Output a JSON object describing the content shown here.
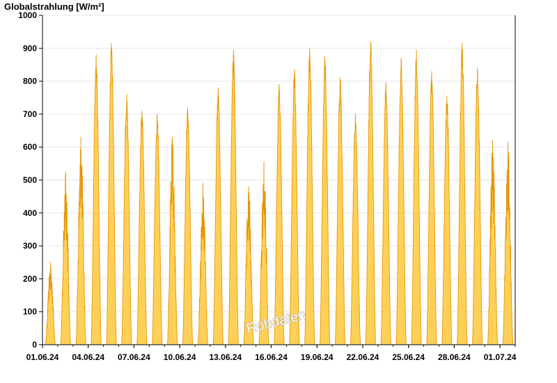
{
  "chart_data": {
    "type": "area",
    "title": "Globalstrahlung [W/m²]",
    "watermark": "Rohdaten",
    "ylim": [
      0,
      1000
    ],
    "yticks": [
      0,
      100,
      200,
      300,
      400,
      500,
      600,
      700,
      800,
      900,
      1000
    ],
    "xlim": [
      "2024-06-01T00:00",
      "2024-07-02T00:00"
    ],
    "xtick_labels": [
      "01.06.24",
      "04.06.24",
      "07.06.24",
      "10.06.24",
      "13.06.24",
      "16.06.24",
      "19.06.24",
      "22.06.24",
      "25.06.24",
      "28.06.24",
      "01.07.24"
    ],
    "grid": true,
    "colors": {
      "fill": "#ffd057",
      "line": "#e69500",
      "grid": "#e6e6e6",
      "axis": "#000000"
    },
    "series": [
      {
        "daily_peaks": [
          {
            "date": "2024-06-01",
            "peak": 250
          },
          {
            "date": "2024-06-02",
            "peak": 525
          },
          {
            "date": "2024-06-03",
            "peak": 630
          },
          {
            "date": "2024-06-04",
            "peak": 880
          },
          {
            "date": "2024-06-05",
            "peak": 915
          },
          {
            "date": "2024-06-06",
            "peak": 760
          },
          {
            "date": "2024-06-07",
            "peak": 710
          },
          {
            "date": "2024-06-08",
            "peak": 700
          },
          {
            "date": "2024-06-09",
            "peak": 630
          },
          {
            "date": "2024-06-10",
            "peak": 720
          },
          {
            "date": "2024-06-11",
            "peak": 490
          },
          {
            "date": "2024-06-12",
            "peak": 780
          },
          {
            "date": "2024-06-13",
            "peak": 895
          },
          {
            "date": "2024-06-14",
            "peak": 480
          },
          {
            "date": "2024-06-15",
            "peak": 555
          },
          {
            "date": "2024-06-16",
            "peak": 790
          },
          {
            "date": "2024-06-17",
            "peak": 835
          },
          {
            "date": "2024-06-18",
            "peak": 900
          },
          {
            "date": "2024-06-19",
            "peak": 875
          },
          {
            "date": "2024-06-20",
            "peak": 810
          },
          {
            "date": "2024-06-21",
            "peak": 700
          },
          {
            "date": "2024-06-22",
            "peak": 920
          },
          {
            "date": "2024-06-23",
            "peak": 795
          },
          {
            "date": "2024-06-24",
            "peak": 870
          },
          {
            "date": "2024-06-25",
            "peak": 895
          },
          {
            "date": "2024-06-26",
            "peak": 830
          },
          {
            "date": "2024-06-27",
            "peak": 755
          },
          {
            "date": "2024-06-28",
            "peak": 915
          },
          {
            "date": "2024-06-29",
            "peak": 840
          },
          {
            "date": "2024-06-30",
            "peak": 620
          },
          {
            "date": "2024-07-01",
            "peak": 615
          }
        ]
      }
    ]
  }
}
